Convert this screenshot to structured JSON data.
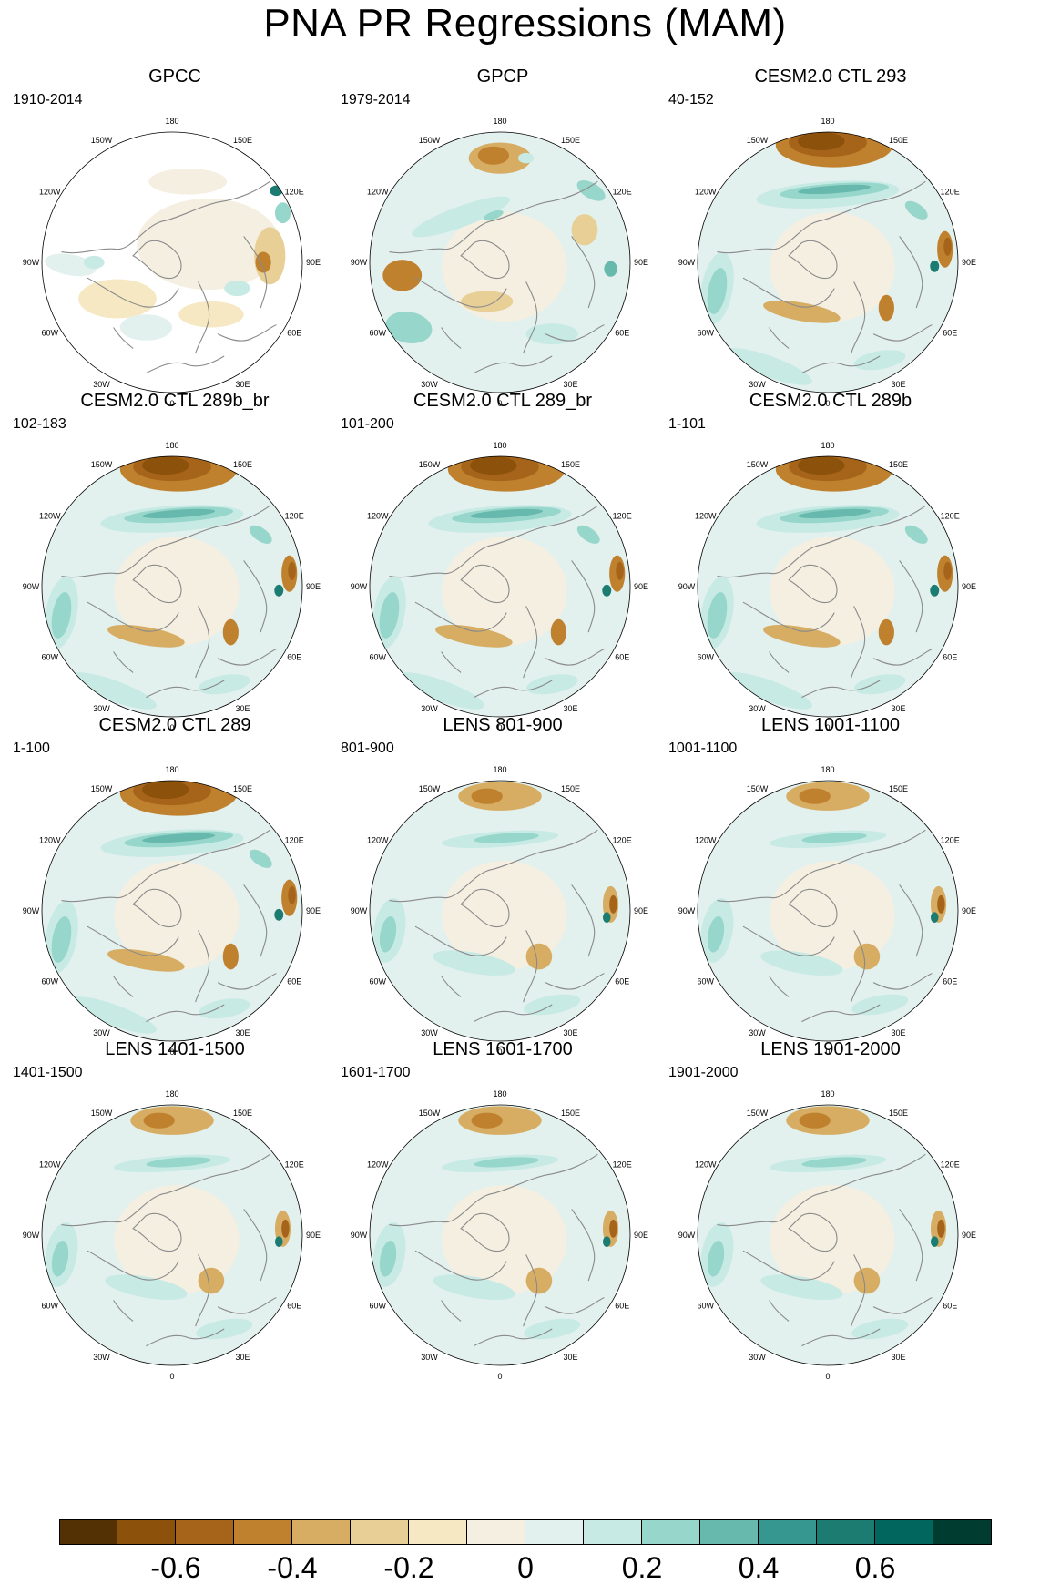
{
  "title": "PNA PR Regressions (MAM)",
  "meridian_labels": [
    "180",
    "150E",
    "120E",
    "90E",
    "60E",
    "30E",
    "0",
    "30W",
    "60W",
    "90W",
    "120W",
    "150W"
  ],
  "panels": [
    {
      "title": "GPCC",
      "years": "1910-2014",
      "pattern": "gpcc"
    },
    {
      "title": "GPCP",
      "years": "1979-2014",
      "pattern": "obs"
    },
    {
      "title": "CESM2.0 CTL 293",
      "years": "40-152",
      "pattern": "strong"
    },
    {
      "title": "CESM2.0 CTL 289b_br",
      "years": "102-183",
      "pattern": "strong"
    },
    {
      "title": "CESM2.0 CTL 289_br",
      "years": "101-200",
      "pattern": "strong"
    },
    {
      "title": "CESM2.0 CTL 289b",
      "years": "1-101",
      "pattern": "strong"
    },
    {
      "title": "CESM2.0 CTL 289",
      "years": "1-100",
      "pattern": "strong"
    },
    {
      "title": "LENS 801-900",
      "years": "801-900",
      "pattern": "weak"
    },
    {
      "title": "LENS 1001-1100",
      "years": "1001-1100",
      "pattern": "weak"
    },
    {
      "title": "LENS 1401-1500",
      "years": "1401-1500",
      "pattern": "weak"
    },
    {
      "title": "LENS 1601-1700",
      "years": "1601-1700",
      "pattern": "weak"
    },
    {
      "title": "LENS 1901-2000",
      "years": "1901-2000",
      "pattern": "weak"
    }
  ],
  "colorbar": {
    "colors": [
      "#543005",
      "#8c510a",
      "#a6641a",
      "#bf812d",
      "#d6ad63",
      "#e8cf96",
      "#f6e8c3",
      "#f4efe1",
      "#e2f0ee",
      "#c7eae5",
      "#97d6cb",
      "#67b8ad",
      "#35978f",
      "#1d7c72",
      "#01665e",
      "#003c30"
    ],
    "tick_labels": [
      "-0.6",
      "-0.4",
      "-0.2",
      "0",
      "0.2",
      "0.4",
      "0.6"
    ],
    "tick_values": [
      -0.6,
      -0.4,
      -0.2,
      0,
      0.2,
      0.4,
      0.6
    ],
    "min": -0.8,
    "max": 0.8
  }
}
